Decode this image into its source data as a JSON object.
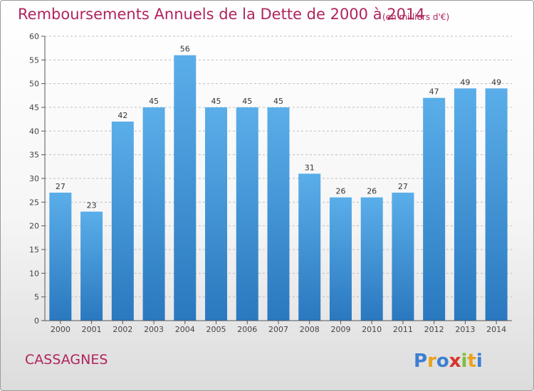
{
  "chart_data": {
    "type": "bar",
    "title": "Remboursements Annuels de la Dette de 2000 à 2014",
    "subtitle": "(en milliers d'€)",
    "categories": [
      "2000",
      "2001",
      "2002",
      "2003",
      "2004",
      "2005",
      "2006",
      "2007",
      "2008",
      "2009",
      "2010",
      "2011",
      "2012",
      "2013",
      "2014"
    ],
    "values": [
      27,
      23,
      42,
      45,
      56,
      45,
      45,
      45,
      31,
      26,
      26,
      27,
      47,
      49,
      49
    ],
    "ylim": [
      0,
      60
    ],
    "yticks": [
      0,
      5,
      10,
      15,
      20,
      25,
      30,
      35,
      40,
      45,
      50,
      55,
      60
    ],
    "grid": "horizontal dashed",
    "colors": {
      "bar": "#3a8fd6",
      "title": "#b0245e"
    }
  },
  "footer": {
    "commune": "CASSAGNES",
    "brand": "Proxiti"
  }
}
